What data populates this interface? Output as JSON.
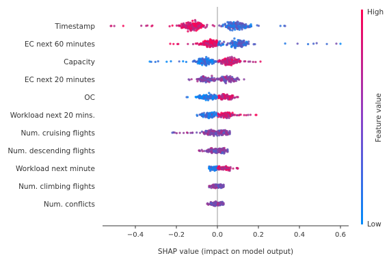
{
  "chart_data": {
    "type": "scatter",
    "subtype": "shap-beeswarm-summary",
    "xlabel": "SHAP value (impact on model output)",
    "xlim": [
      -0.56,
      0.64
    ],
    "xticks": [
      -0.4,
      -0.2,
      0.0,
      0.2,
      0.4,
      0.6
    ],
    "xtick_labels": [
      "−0.4",
      "−0.2",
      "0.0",
      "0.2",
      "0.4",
      "0.6"
    ],
    "grid": false,
    "zero_line": true,
    "features": [
      {
        "name": "Timestamp",
        "min": -0.52,
        "max": 0.33,
        "cluster_low": -0.12,
        "cluster_high": 0.09,
        "neg_color": "high",
        "spread": 1.0
      },
      {
        "name": "EC next 60 minutes",
        "min": -0.23,
        "max": 0.6,
        "cluster_low": -0.03,
        "cluster_high": 0.1,
        "neg_color": "high",
        "spread": 0.9
      },
      {
        "name": "Capacity",
        "min": -0.33,
        "max": 0.21,
        "cluster_low": -0.06,
        "cluster_high": 0.06,
        "neg_color": "low",
        "spread": 0.8
      },
      {
        "name": "EC next 20 minutes",
        "min": -0.14,
        "max": 0.13,
        "cluster_low": -0.05,
        "cluster_high": 0.05,
        "neg_color": "mixed",
        "spread": 0.6
      },
      {
        "name": "OC",
        "min": -0.15,
        "max": 0.1,
        "cluster_low": -0.05,
        "cluster_high": 0.04,
        "neg_color": "low",
        "spread": 0.55
      },
      {
        "name": "Workload next 20 mins.",
        "min": -0.1,
        "max": 0.19,
        "cluster_low": -0.04,
        "cluster_high": 0.04,
        "neg_color": "low",
        "spread": 0.55
      },
      {
        "name": "Num. cruising flights",
        "min": -0.22,
        "max": 0.06,
        "cluster_low": -0.03,
        "cluster_high": 0.03,
        "neg_color": "mixed",
        "spread": 0.5
      },
      {
        "name": "Num. descending flights",
        "min": -0.09,
        "max": 0.05,
        "cluster_low": -0.02,
        "cluster_high": 0.02,
        "neg_color": "mixed",
        "spread": 0.4
      },
      {
        "name": "Workload next minute",
        "min": -0.04,
        "max": 0.1,
        "cluster_low": -0.01,
        "cluster_high": 0.03,
        "neg_color": "low",
        "spread": 0.35
      },
      {
        "name": "Num. climbing flights",
        "min": -0.04,
        "max": 0.03,
        "cluster_low": -0.01,
        "cluster_high": 0.01,
        "neg_color": "mixed",
        "spread": 0.3
      },
      {
        "name": "Num. conflicts",
        "min": -0.05,
        "max": 0.03,
        "cluster_low": -0.01,
        "cluster_high": 0.01,
        "neg_color": "mixed",
        "spread": 0.28
      }
    ],
    "colorbar": {
      "label": "Feature value",
      "high_label": "High",
      "low_label": "Low",
      "high_color": "#ff0052",
      "low_color": "#008bfb"
    }
  }
}
